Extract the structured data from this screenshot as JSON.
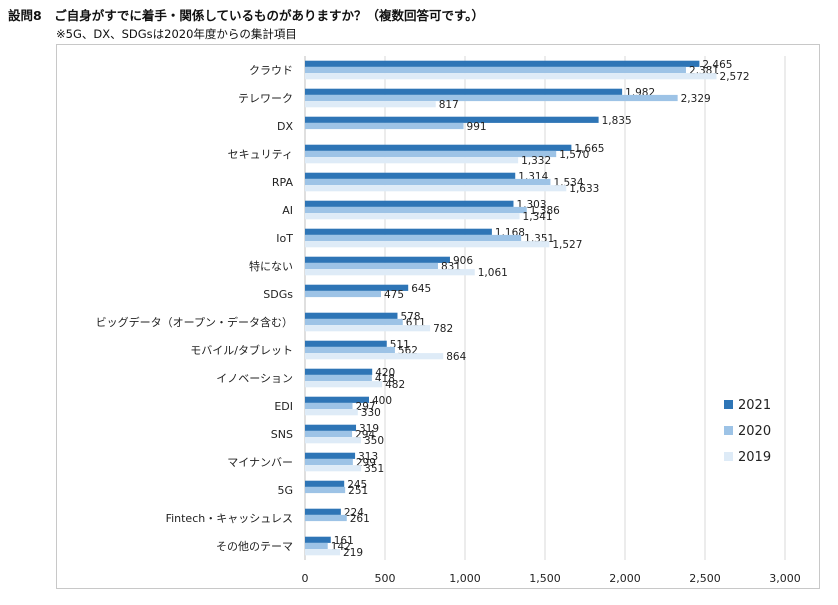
{
  "title": "設問8　ご自身がすでに着手・関係しているものがありますか？（複数回答可です。）",
  "subtitle": "※5G、DX、SDGsは2020年度からの集計項目",
  "colors": {
    "2021": "#2e75b6",
    "2020": "#9dc3e6",
    "2019": "#deebf7",
    "grid": "#d9d9d9",
    "text": "#222222"
  },
  "chart_data": {
    "type": "bar",
    "orientation": "horizontal",
    "categories": [
      "クラウド",
      "テレワーク",
      "DX",
      "セキュリティ",
      "RPA",
      "AI",
      "IoT",
      "特にない",
      "SDGs",
      "ビッグデータ（オープン・データ含む）",
      "モバイル/タブレット",
      "イノベーション",
      "EDI",
      "SNS",
      "マイナンバー",
      "5G",
      "Fintech・キャッシュレス",
      "その他のテーマ"
    ],
    "series": [
      {
        "name": "2021",
        "values": [
          2465,
          1982,
          1835,
          1665,
          1314,
          1303,
          1168,
          906,
          645,
          578,
          511,
          420,
          400,
          319,
          313,
          245,
          224,
          161
        ]
      },
      {
        "name": "2020",
        "values": [
          2381,
          2329,
          991,
          1570,
          1534,
          1386,
          1351,
          831,
          475,
          611,
          562,
          418,
          297,
          294,
          299,
          251,
          261,
          142
        ]
      },
      {
        "name": "2019",
        "values": [
          2572,
          817,
          null,
          1332,
          1633,
          1341,
          1527,
          1061,
          null,
          782,
          864,
          482,
          330,
          350,
          351,
          null,
          null,
          219
        ]
      }
    ],
    "data_labels": {
      "2021": [
        "2,465",
        "1,982",
        "1,835",
        "1,665",
        "1,314",
        "1,303",
        "1,168",
        "906",
        "645",
        "578",
        "511",
        "420",
        "400",
        "319",
        "313",
        "245",
        "224",
        "161"
      ],
      "2020": [
        "2,381",
        "2,329",
        "991",
        "1,570",
        "1,534",
        "1,386",
        "1,351",
        "831",
        "475",
        "611",
        "562",
        "418",
        "297",
        "294",
        "299",
        "251",
        "261",
        "142"
      ],
      "2019": [
        "2,572",
        "817",
        "",
        "1,332",
        "1,633",
        "1,341",
        "1,527",
        "1,061",
        "",
        "782",
        "864",
        "482",
        "330",
        "350",
        "351",
        "",
        "",
        "219"
      ]
    },
    "xlim": [
      0,
      3000
    ],
    "xticks": [
      0,
      500,
      1000,
      1500,
      2000,
      2500,
      3000
    ],
    "xtick_labels": [
      "0",
      "500",
      "1,000",
      "1,500",
      "2,000",
      "2,500",
      "3,000"
    ],
    "grid": true,
    "legend": {
      "position": "right",
      "entries": [
        "2021",
        "2020",
        "2019"
      ]
    }
  }
}
